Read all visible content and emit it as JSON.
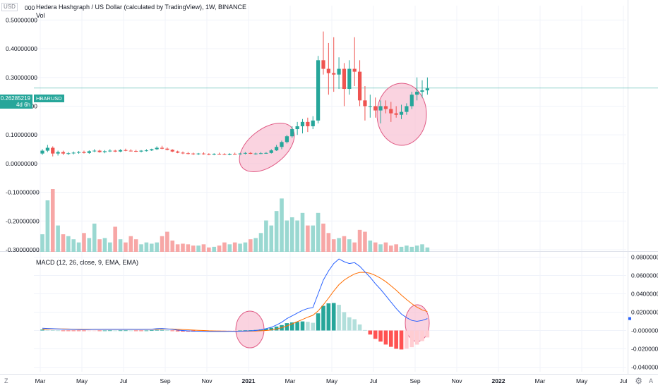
{
  "header": {
    "title": "Hedera Hashgraph / US Dollar (calculated by TradingView), 1W, BINANCE",
    "volume_label": "Vol",
    "currency": "USD"
  },
  "price_marker": {
    "value": "0.26285219",
    "countdown": "4d 6h",
    "symbol": "HBARUSD"
  },
  "macd_label": "MACD (12, 26, close, 9, EMA, EMA)",
  "corner": {
    "left": "Z",
    "right": "A",
    "settings_icon": "gear-icon"
  },
  "colors": {
    "up": "#26a69a",
    "down": "#ef5350",
    "vol_up": "#9ad8d1",
    "vol_down": "#f7a7a6",
    "hist_up_strong": "#26a69a",
    "hist_up_weak": "#b2dfdb",
    "hist_down_strong": "#ff5252",
    "hist_down_weak": "#ffcdd2",
    "macd_line": "#2962ff",
    "signal_line": "#ff6d00",
    "circle_fill": "#f8bbd0",
    "circle_stroke": "#e05a84",
    "price_line": "#26a69a",
    "grid": "#f0f3fa"
  },
  "chart_data": [
    {
      "type": "candlestick",
      "title": "Hedera Hashgraph / US Dollar (calculated by TradingView), 1W, BINANCE",
      "timeframe": "1W",
      "ylim": [
        -0.3,
        0.55
      ],
      "yticks": [
        "0.50000000",
        "0.40000000",
        "0.30000000",
        "0.20000000",
        "0.10000000",
        "0.00000000",
        "-0.10000000",
        "-0.20000000",
        "-0.30000000"
      ],
      "ytick_values": [
        0.5,
        0.4,
        0.3,
        0.2,
        0.1,
        0.0,
        -0.1,
        -0.2,
        -0.3
      ],
      "clipped_top_tick": "0.56",
      "xticks": [
        "Mar",
        "May",
        "Jul",
        "Sep",
        "Nov",
        "2021",
        "Mar",
        "May",
        "Jul",
        "Sep",
        "Nov",
        "2022",
        "Mar",
        "May",
        "Jul"
      ],
      "last_price": 0.26285219,
      "ohlc": [
        [
          0.035,
          0.05,
          0.03,
          0.045
        ],
        [
          0.045,
          0.065,
          0.04,
          0.055
        ],
        [
          0.055,
          0.06,
          0.025,
          0.035
        ],
        [
          0.035,
          0.045,
          0.028,
          0.04
        ],
        [
          0.04,
          0.045,
          0.03,
          0.035
        ],
        [
          0.035,
          0.04,
          0.03,
          0.036
        ],
        [
          0.036,
          0.042,
          0.032,
          0.038
        ],
        [
          0.038,
          0.044,
          0.034,
          0.04
        ],
        [
          0.04,
          0.045,
          0.035,
          0.037
        ],
        [
          0.037,
          0.046,
          0.034,
          0.043
        ],
        [
          0.043,
          0.05,
          0.04,
          0.045
        ],
        [
          0.045,
          0.048,
          0.038,
          0.04
        ],
        [
          0.04,
          0.047,
          0.036,
          0.043
        ],
        [
          0.043,
          0.05,
          0.04,
          0.045
        ],
        [
          0.045,
          0.048,
          0.04,
          0.042
        ],
        [
          0.042,
          0.05,
          0.04,
          0.047
        ],
        [
          0.047,
          0.052,
          0.043,
          0.045
        ],
        [
          0.045,
          0.05,
          0.042,
          0.044
        ],
        [
          0.044,
          0.048,
          0.04,
          0.042
        ],
        [
          0.042,
          0.047,
          0.039,
          0.045
        ],
        [
          0.045,
          0.05,
          0.042,
          0.046
        ],
        [
          0.046,
          0.052,
          0.044,
          0.05
        ],
        [
          0.05,
          0.06,
          0.047,
          0.055
        ],
        [
          0.055,
          0.062,
          0.05,
          0.052
        ],
        [
          0.052,
          0.056,
          0.046,
          0.048
        ],
        [
          0.048,
          0.05,
          0.04,
          0.042
        ],
        [
          0.042,
          0.045,
          0.036,
          0.038
        ],
        [
          0.038,
          0.042,
          0.033,
          0.036
        ],
        [
          0.036,
          0.04,
          0.032,
          0.035
        ],
        [
          0.035,
          0.038,
          0.03,
          0.033
        ],
        [
          0.033,
          0.037,
          0.03,
          0.035
        ],
        [
          0.035,
          0.039,
          0.031,
          0.033
        ],
        [
          0.033,
          0.036,
          0.029,
          0.032
        ],
        [
          0.032,
          0.036,
          0.029,
          0.034
        ],
        [
          0.034,
          0.038,
          0.031,
          0.033
        ],
        [
          0.033,
          0.036,
          0.03,
          0.031
        ],
        [
          0.031,
          0.036,
          0.029,
          0.034
        ],
        [
          0.034,
          0.038,
          0.031,
          0.033
        ],
        [
          0.033,
          0.037,
          0.03,
          0.035
        ],
        [
          0.035,
          0.04,
          0.032,
          0.037
        ],
        [
          0.037,
          0.04,
          0.033,
          0.034
        ],
        [
          0.034,
          0.038,
          0.031,
          0.035
        ],
        [
          0.035,
          0.04,
          0.033,
          0.036
        ],
        [
          0.036,
          0.04,
          0.034,
          0.037
        ],
        [
          0.037,
          0.05,
          0.035,
          0.046
        ],
        [
          0.046,
          0.065,
          0.044,
          0.058
        ],
        [
          0.058,
          0.08,
          0.05,
          0.075
        ],
        [
          0.075,
          0.1,
          0.07,
          0.095
        ],
        [
          0.095,
          0.13,
          0.09,
          0.12
        ],
        [
          0.12,
          0.145,
          0.1,
          0.13
        ],
        [
          0.13,
          0.155,
          0.105,
          0.145
        ],
        [
          0.145,
          0.16,
          0.11,
          0.13
        ],
        [
          0.13,
          0.165,
          0.12,
          0.15
        ],
        [
          0.15,
          0.375,
          0.14,
          0.36
        ],
        [
          0.36,
          0.46,
          0.31,
          0.33
        ],
        [
          0.33,
          0.42,
          0.24,
          0.315
        ],
        [
          0.315,
          0.44,
          0.25,
          0.31
        ],
        [
          0.31,
          0.37,
          0.26,
          0.33
        ],
        [
          0.33,
          0.35,
          0.2,
          0.26
        ],
        [
          0.26,
          0.36,
          0.24,
          0.33
        ],
        [
          0.33,
          0.44,
          0.27,
          0.32
        ],
        [
          0.32,
          0.36,
          0.2,
          0.22
        ],
        [
          0.22,
          0.27,
          0.15,
          0.2
        ],
        [
          0.2,
          0.24,
          0.16,
          0.2
        ],
        [
          0.2,
          0.23,
          0.16,
          0.185
        ],
        [
          0.185,
          0.22,
          0.14,
          0.2
        ],
        [
          0.2,
          0.22,
          0.175,
          0.19
        ],
        [
          0.19,
          0.215,
          0.145,
          0.175
        ],
        [
          0.175,
          0.2,
          0.16,
          0.17
        ],
        [
          0.17,
          0.205,
          0.155,
          0.18
        ],
        [
          0.18,
          0.21,
          0.17,
          0.2
        ],
        [
          0.2,
          0.25,
          0.19,
          0.24
        ],
        [
          0.24,
          0.3,
          0.22,
          0.25
        ],
        [
          0.25,
          0.29,
          0.23,
          0.255
        ],
        [
          0.255,
          0.3,
          0.24,
          0.262
        ]
      ]
    },
    {
      "type": "bar",
      "name": "Vol",
      "values": [
        0.28,
        0.82,
        1.0,
        0.42,
        0.28,
        0.25,
        0.2,
        0.15,
        0.3,
        0.22,
        0.45,
        0.2,
        0.22,
        0.15,
        0.4,
        0.2,
        0.15,
        0.25,
        0.2,
        0.12,
        0.15,
        0.13,
        0.15,
        0.25,
        0.32,
        0.18,
        0.12,
        0.13,
        0.12,
        0.1,
        0.1,
        0.12,
        0.07,
        0.08,
        0.1,
        0.15,
        0.12,
        0.15,
        0.13,
        0.15,
        0.2,
        0.22,
        0.3,
        0.5,
        0.42,
        0.65,
        0.85,
        0.5,
        0.55,
        0.5,
        0.62,
        0.42,
        0.42,
        0.62,
        0.45,
        0.3,
        0.2,
        0.22,
        0.25,
        0.2,
        0.15,
        0.35,
        0.32,
        0.18,
        0.15,
        0.12,
        0.15,
        0.1,
        0.12,
        0.08,
        0.1,
        0.08,
        0.1,
        0.12,
        0.07
      ]
    },
    {
      "type": "line",
      "title": "MACD (12, 26, close, 9, EMA, EMA)",
      "ylim": [
        -0.045,
        0.085
      ],
      "yticks": [
        "0.08000000",
        "0.06000000",
        "0.04000000",
        "0.02000000",
        "-0.00000000",
        "-0.02000000",
        "-0.04000000"
      ],
      "ytick_values": [
        0.08,
        0.06,
        0.04,
        0.02,
        0.0,
        -0.02,
        -0.04
      ],
      "series": [
        {
          "name": "MACD",
          "values": [
            0.0025,
            0.0022,
            0.002,
            0.0018,
            0.0015,
            0.0013,
            0.0012,
            0.0011,
            0.001,
            0.0011,
            0.0012,
            0.0012,
            0.0013,
            0.0014,
            0.0013,
            0.0014,
            0.0014,
            0.0013,
            0.0012,
            0.0012,
            0.0013,
            0.0015,
            0.002,
            0.0022,
            0.0018,
            0.0012,
            0.0005,
            0.0,
            -0.0004,
            -0.0007,
            -0.0008,
            -0.0009,
            -0.0011,
            -0.0011,
            -0.0011,
            -0.0011,
            -0.001,
            -0.0009,
            -0.0008,
            -0.0006,
            -0.0004,
            0.0,
            0.0008,
            0.002,
            0.0035,
            0.006,
            0.009,
            0.013,
            0.016,
            0.019,
            0.022,
            0.024,
            0.025,
            0.04,
            0.055,
            0.065,
            0.073,
            0.078,
            0.075,
            0.073,
            0.074,
            0.07,
            0.064,
            0.058,
            0.051,
            0.045,
            0.038,
            0.031,
            0.024,
            0.018,
            0.014,
            0.011,
            0.01,
            0.011,
            0.013
          ]
        },
        {
          "name": "Signal",
          "values": [
            0.0015,
            0.0016,
            0.0017,
            0.0017,
            0.0017,
            0.0016,
            0.0015,
            0.0015,
            0.0014,
            0.0013,
            0.0013,
            0.0013,
            0.0013,
            0.0013,
            0.0013,
            0.0013,
            0.0013,
            0.0013,
            0.0013,
            0.0013,
            0.0013,
            0.0013,
            0.0014,
            0.0016,
            0.0016,
            0.0016,
            0.0014,
            0.0011,
            0.0008,
            0.0005,
            0.0002,
            0.0,
            -0.0003,
            -0.0005,
            -0.0006,
            -0.0007,
            -0.0008,
            -0.0008,
            -0.0008,
            -0.0008,
            -0.0007,
            -0.0006,
            -0.0003,
            0.0,
            0.0006,
            0.0017,
            0.0031,
            0.005,
            0.0072,
            0.0096,
            0.0121,
            0.0145,
            0.0166,
            0.0213,
            0.0281,
            0.0354,
            0.043,
            0.05,
            0.055,
            0.0586,
            0.0617,
            0.0634,
            0.0635,
            0.0624,
            0.0601,
            0.0571,
            0.0533,
            0.0488,
            0.0439,
            0.0387,
            0.0338,
            0.0292,
            0.0254,
            0.0225,
            0.0206
          ]
        },
        {
          "name": "Histogram",
          "values": [
            0.001,
            0.0006,
            0.0003,
            0.0001,
            -0.0002,
            -0.0003,
            -0.0003,
            -0.0004,
            -0.0004,
            -0.0002,
            -0.0001,
            -0.0001,
            0.0,
            0.0001,
            0.0,
            0.0001,
            0.0001,
            0.0,
            -0.0001,
            -0.0001,
            0.0,
            0.0002,
            0.0006,
            0.0006,
            0.0002,
            -0.0004,
            -0.0009,
            -0.0011,
            -0.0012,
            -0.0012,
            -0.001,
            -0.0009,
            -0.0008,
            -0.0006,
            -0.0005,
            -0.0004,
            -0.0002,
            -0.0001,
            0.0,
            0.0002,
            0.0003,
            0.0006,
            0.0011,
            0.002,
            0.0029,
            0.0043,
            0.0059,
            0.008,
            0.0088,
            0.0094,
            0.0099,
            0.0095,
            0.0084,
            0.0187,
            0.0269,
            0.0296,
            0.03,
            0.028,
            0.02,
            0.0144,
            0.0123,
            0.0066,
            0.0005,
            -0.0044,
            -0.0091,
            -0.0121,
            -0.0153,
            -0.0178,
            -0.0199,
            -0.0207,
            -0.0198,
            -0.0182,
            -0.0154,
            -0.0115,
            -0.0076
          ]
        }
      ]
    }
  ]
}
